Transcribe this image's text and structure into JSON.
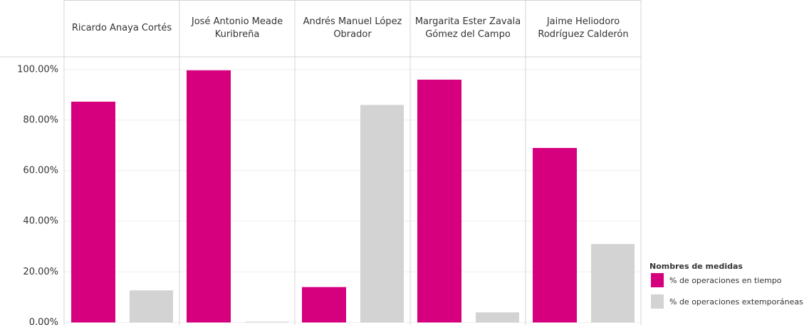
{
  "chart_data": {
    "type": "bar",
    "categories": [
      "Ricardo Anaya Cortés",
      "José Antonio Meade Kuribreña",
      "Andrés Manuel López Obrador",
      "Margarita Ester Zavala Gómez del Campo",
      "Jaime Heliodoro Rodríguez Calderón"
    ],
    "series": [
      {
        "name": "% de operaciones en tiempo",
        "color": "#d6007f",
        "values": [
          87.3,
          99.7,
          14,
          96,
          69
        ]
      },
      {
        "name": "% de operaciones extemporáneas",
        "color": "#d3d3d3",
        "values": [
          12.7,
          0.3,
          86,
          4,
          31
        ]
      }
    ],
    "ylim": [
      -1,
      105
    ],
    "yticks": [
      {
        "value": 0,
        "label": "0.00%"
      },
      {
        "value": 20,
        "label": "20.00%"
      },
      {
        "value": 40,
        "label": "40.00%"
      },
      {
        "value": 60,
        "label": "60.00%"
      },
      {
        "value": 80,
        "label": "80.00%"
      },
      {
        "value": 100,
        "label": "100.00%"
      }
    ],
    "grid": true,
    "legend_title": "Nombres de medidas",
    "legend_position": "right"
  }
}
